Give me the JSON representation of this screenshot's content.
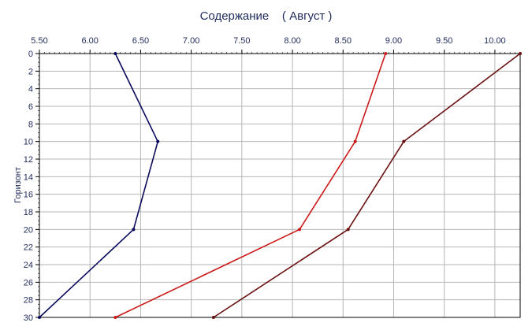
{
  "chart_data": {
    "type": "line",
    "title": "Содержание    ( Август )",
    "xlabel": "",
    "ylabel": "Горизонт",
    "xlim": [
      5.5,
      10.25
    ],
    "ylim": [
      0,
      30
    ],
    "x_ticks": [
      "5.50",
      "6.00",
      "6.50",
      "7.00",
      "7.50",
      "8.00",
      "8.50",
      "9.00",
      "9.50",
      "10.00"
    ],
    "y_ticks": [
      "0",
      "2",
      "4",
      "6",
      "8",
      "10",
      "12",
      "14",
      "16",
      "18",
      "20",
      "22",
      "24",
      "26",
      "28",
      "30"
    ],
    "x_axis_position": "top",
    "y_axis_inverted": true,
    "grid": true,
    "series": [
      {
        "color": "#0a0a5c",
        "points": [
          [
            6.25,
            0
          ],
          [
            6.67,
            10
          ],
          [
            6.43,
            20
          ],
          [
            5.5,
            30
          ]
        ]
      },
      {
        "color": "#cc1a1a",
        "points": [
          [
            8.92,
            0
          ],
          [
            8.62,
            10
          ],
          [
            8.07,
            20
          ],
          [
            6.25,
            30
          ]
        ]
      },
      {
        "color": "#6b1010",
        "points": [
          [
            10.25,
            0
          ],
          [
            9.1,
            10
          ],
          [
            8.55,
            20
          ],
          [
            7.22,
            30
          ]
        ]
      }
    ]
  }
}
